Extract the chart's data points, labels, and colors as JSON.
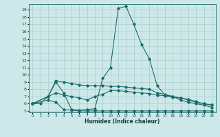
{
  "bg_color": "#cde8e8",
  "grid_color": "#aacccc",
  "line_color": "#1a6b6b",
  "xlabel": "Humidex (Indice chaleur)",
  "xlim": [
    -0.5,
    23.5
  ],
  "ylim": [
    4.8,
    19.8
  ],
  "yticks": [
    5,
    6,
    7,
    8,
    9,
    10,
    11,
    12,
    13,
    14,
    15,
    16,
    17,
    18,
    19
  ],
  "xticks": [
    0,
    1,
    2,
    3,
    4,
    5,
    6,
    7,
    8,
    9,
    10,
    11,
    12,
    13,
    14,
    15,
    16,
    17,
    18,
    19,
    20,
    21,
    22,
    23
  ],
  "line1_x": [
    0,
    1,
    2,
    3,
    4,
    5,
    6,
    7,
    8,
    9,
    10,
    11,
    12,
    13,
    14,
    15,
    16,
    17,
    18,
    19,
    20,
    21,
    22,
    23
  ],
  "line1_y": [
    6,
    6,
    7,
    9,
    7.5,
    5.2,
    5.1,
    5.2,
    5.3,
    9.5,
    11.0,
    19.2,
    19.5,
    17.0,
    14.2,
    12.2,
    8.5,
    7.2,
    7.0,
    6.5,
    6.2,
    6.0,
    5.8,
    5.5
  ],
  "line2_x": [
    0,
    2,
    3,
    4,
    5,
    6,
    7,
    8,
    9,
    10,
    11,
    12,
    13,
    14,
    15,
    16,
    17,
    18,
    19,
    20,
    21,
    22,
    23
  ],
  "line2_y": [
    6,
    7,
    9.2,
    9.0,
    8.8,
    8.6,
    8.5,
    8.5,
    8.5,
    8.4,
    8.4,
    8.3,
    8.2,
    8.1,
    8.0,
    7.5,
    7.3,
    7.0,
    6.8,
    6.5,
    6.2,
    6.0,
    5.8
  ],
  "line3_x": [
    0,
    2,
    3,
    4,
    5,
    6,
    7,
    8,
    9,
    10,
    11,
    12,
    13,
    14,
    15,
    16,
    17,
    18,
    19,
    20,
    21,
    22,
    23
  ],
  "line3_y": [
    6,
    7,
    7.5,
    7.2,
    7.0,
    6.8,
    6.5,
    7.0,
    7.3,
    7.8,
    7.8,
    7.7,
    7.6,
    7.5,
    7.4,
    7.2,
    7.1,
    6.9,
    6.8,
    6.6,
    6.3,
    6.0,
    5.8
  ],
  "line4_x": [
    0,
    2,
    3,
    4,
    5,
    6,
    7,
    8,
    9,
    10,
    11,
    12,
    13,
    14,
    15,
    16,
    17,
    18,
    19,
    20,
    21,
    22,
    23
  ],
  "line4_y": [
    6,
    6.5,
    6.2,
    5.2,
    5.1,
    5.0,
    5.0,
    5.0,
    5.0,
    5.0,
    5.0,
    5.0,
    5.0,
    5.0,
    5.0,
    5.0,
    5.0,
    5.0,
    5.0,
    5.0,
    5.0,
    5.0,
    5.0
  ]
}
